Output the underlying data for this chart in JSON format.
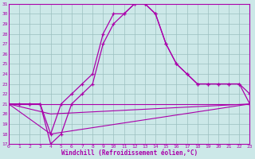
{
  "xlabel": "Windchill (Refroidissement éolien,°C)",
  "xlim": [
    0,
    23
  ],
  "ylim": [
    17,
    31
  ],
  "yticks": [
    17,
    18,
    19,
    20,
    21,
    22,
    23,
    24,
    25,
    26,
    27,
    28,
    29,
    30,
    31
  ],
  "xticks": [
    0,
    1,
    2,
    3,
    4,
    5,
    6,
    7,
    8,
    9,
    10,
    11,
    12,
    13,
    14,
    15,
    16,
    17,
    18,
    19,
    20,
    21,
    22,
    23
  ],
  "background_color": "#cce8e8",
  "grid_color": "#9bbfbf",
  "line_color": "#aa00aa",
  "curve1_x": [
    0,
    1,
    2,
    3,
    4,
    5,
    6,
    7,
    8,
    9,
    10,
    11,
    12,
    13,
    14,
    15,
    16,
    17,
    18,
    19,
    20,
    21,
    22,
    23
  ],
  "curve1_y": [
    21,
    21,
    21,
    21,
    18,
    21,
    22,
    23,
    24,
    28,
    30,
    30,
    31,
    31,
    30,
    27,
    25,
    24,
    23,
    23,
    23,
    23,
    23,
    22
  ],
  "curve2_x": [
    0,
    1,
    2,
    3,
    4,
    5,
    6,
    7,
    8,
    9,
    10,
    11,
    12,
    13,
    14,
    15,
    16,
    17,
    18,
    19,
    20,
    21,
    22,
    23
  ],
  "curve2_y": [
    21,
    21,
    21,
    21,
    17,
    18,
    21,
    22,
    23,
    27,
    29,
    30,
    31,
    31,
    30,
    27,
    25,
    24,
    23,
    23,
    23,
    23,
    23,
    21
  ],
  "curve3_x": [
    0,
    23
  ],
  "curve3_y": [
    21,
    21
  ],
  "curve4_x": [
    0,
    4,
    23
  ],
  "curve4_y": [
    21,
    20,
    21
  ],
  "curve5_x": [
    0,
    4,
    23
  ],
  "curve5_y": [
    21,
    18,
    21
  ]
}
